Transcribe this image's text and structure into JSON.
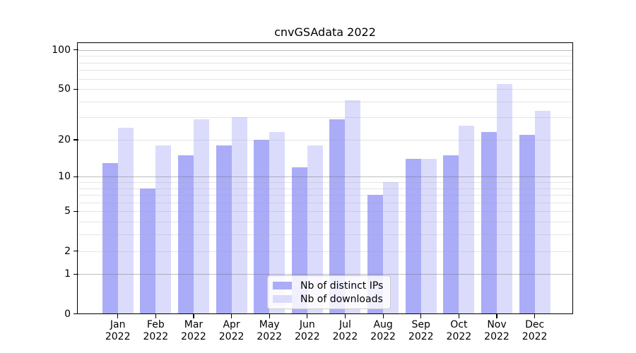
{
  "chart_data": {
    "type": "bar",
    "title": "cnvGSAdata 2022",
    "categories": [
      "Jan 2022",
      "Feb 2022",
      "Mar 2022",
      "Apr 2022",
      "May 2022",
      "Jun 2022",
      "Jul 2022",
      "Aug 2022",
      "Sep 2022",
      "Oct 2022",
      "Nov 2022",
      "Dec 2022"
    ],
    "months": [
      "Jan",
      "Feb",
      "Mar",
      "Apr",
      "May",
      "Jun",
      "Jul",
      "Aug",
      "Sep",
      "Oct",
      "Nov",
      "Dec"
    ],
    "year": "2022",
    "series": [
      {
        "name": "Nb of distinct IPs",
        "color": "#aaacf8",
        "values": [
          13,
          8,
          15,
          18,
          20,
          12,
          29,
          7,
          14,
          15,
          23,
          22
        ]
      },
      {
        "name": "Nb of downloads",
        "color": "#dbdcfc",
        "values": [
          25,
          18,
          29,
          30,
          23,
          18,
          41,
          9,
          14,
          26,
          55,
          34
        ]
      }
    ],
    "xlabel": "",
    "ylabel": "",
    "yscale": "log1p",
    "ylim": [
      0,
      113
    ],
    "yticks": [
      100,
      50,
      20,
      10,
      5,
      2,
      1,
      0
    ],
    "grid": true,
    "grid_major": [
      1,
      10,
      100
    ],
    "grid_minor": [
      2,
      3,
      4,
      5,
      6,
      7,
      8,
      9,
      20,
      30,
      40,
      50,
      60,
      70,
      80,
      90
    ],
    "legend_position": "lower-center"
  }
}
